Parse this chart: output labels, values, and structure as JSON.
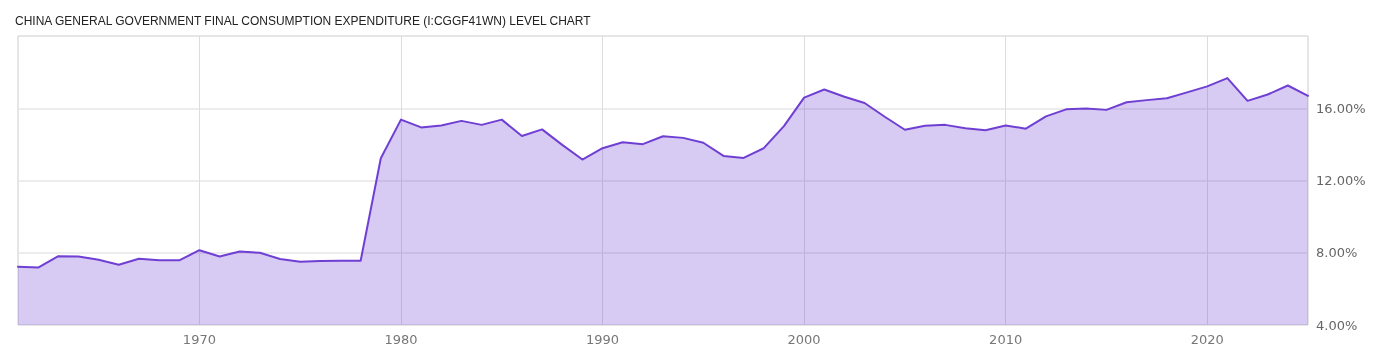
{
  "chart_data": {
    "type": "area",
    "title": "CHINA GENERAL GOVERNMENT FINAL CONSUMPTION EXPENDITURE (I:CGGF41WN) LEVEL CHART",
    "x": [
      1961,
      1962,
      1963,
      1964,
      1965,
      1966,
      1967,
      1968,
      1969,
      1970,
      1971,
      1972,
      1973,
      1974,
      1975,
      1976,
      1977,
      1978,
      1979,
      1980,
      1981,
      1982,
      1983,
      1984,
      1985,
      1986,
      1987,
      1988,
      1989,
      1990,
      1991,
      1992,
      1993,
      1994,
      1995,
      1996,
      1997,
      1998,
      1999,
      2000,
      2001,
      2002,
      2003,
      2004,
      2005,
      2006,
      2007,
      2008,
      2009,
      2010,
      2011,
      2012,
      2013,
      2014,
      2015,
      2016,
      2017,
      2018,
      2019,
      2020,
      2021,
      2022,
      2023,
      2024,
      2025
    ],
    "series": [
      {
        "color": "#6f3fd4",
        "values": [
          7.23,
          7.18,
          7.81,
          7.79,
          7.61,
          7.34,
          7.67,
          7.58,
          7.58,
          8.14,
          7.79,
          8.07,
          8.0,
          7.65,
          7.5,
          7.54,
          7.56,
          7.56,
          13.23,
          15.37,
          14.94,
          15.05,
          15.3,
          15.08,
          15.37,
          14.46,
          14.83,
          13.97,
          13.16,
          13.79,
          14.12,
          14.01,
          14.45,
          14.36,
          14.09,
          13.36,
          13.25,
          13.79,
          15.01,
          16.59,
          17.04,
          16.64,
          16.29,
          15.53,
          14.81,
          15.03,
          15.08,
          14.89,
          14.78,
          15.05,
          14.87,
          15.55,
          15.94,
          15.98,
          15.91,
          16.33,
          16.45,
          16.55,
          16.88,
          17.21,
          17.67,
          16.41,
          16.76,
          17.26,
          16.69
        ]
      }
    ],
    "xlim": [
      1961,
      2025
    ],
    "xticks": [
      1970,
      1980,
      1990,
      2000,
      2010,
      2020
    ],
    "ylim": [
      4,
      20
    ],
    "yticks": [
      {
        "value": 4,
        "label": "4.00%"
      },
      {
        "value": 8,
        "label": "8.00%"
      },
      {
        "value": 12,
        "label": "12.00%"
      },
      {
        "value": 16,
        "label": "16.00%"
      }
    ],
    "grid": true,
    "marker": "none",
    "line_style": "solid"
  }
}
